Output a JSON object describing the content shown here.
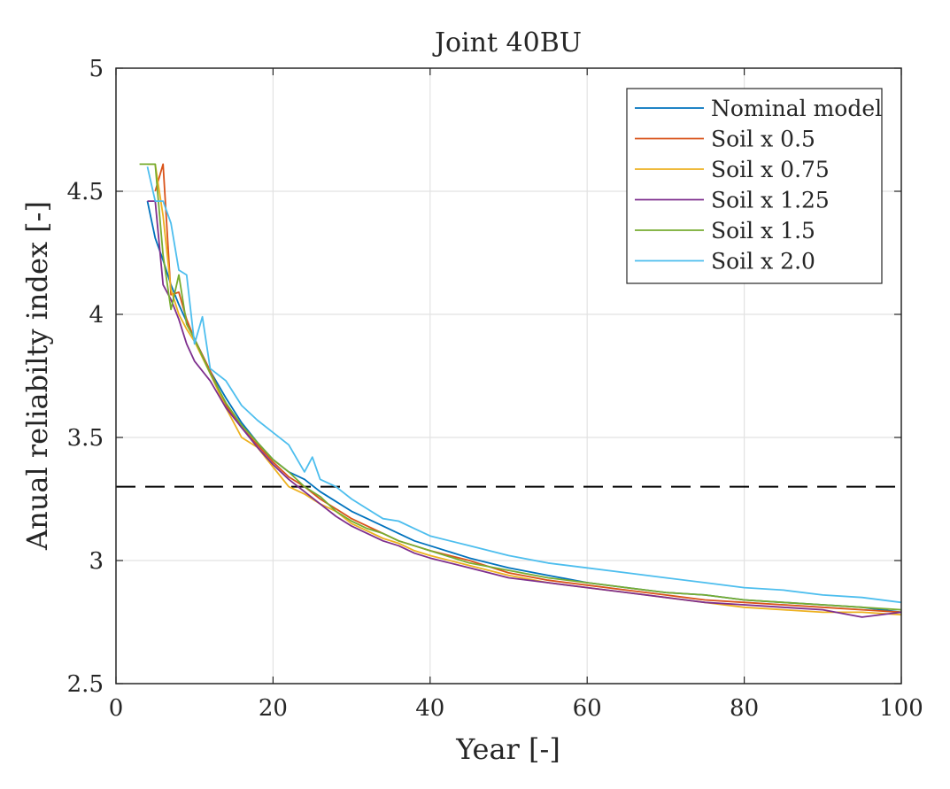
{
  "chart_data": {
    "type": "line",
    "title": "Joint 40BU",
    "xlabel": "Year [-]",
    "ylabel": "Anual reliabilty index [-]",
    "xlim": [
      0,
      100
    ],
    "ylim": [
      2.5,
      5
    ],
    "xticks": [
      0,
      20,
      40,
      60,
      80,
      100
    ],
    "yticks": [
      2.5,
      3,
      3.5,
      4,
      4.5,
      5
    ],
    "xtick_labels": [
      "0",
      "20",
      "40",
      "60",
      "80",
      "100"
    ],
    "ytick_labels": [
      "2.5",
      "3",
      "3.5",
      "4",
      "4.5",
      "5"
    ],
    "grid": true,
    "legend_position": "top-right",
    "reference_line": {
      "y": 3.3,
      "style": "dashed",
      "color": "#000000"
    },
    "series": [
      {
        "name": "Nominal model",
        "color": "#0072BD",
        "x": [
          4,
          5,
          6,
          7,
          8,
          9,
          10,
          12,
          14,
          16,
          18,
          20,
          22,
          24,
          26,
          28,
          30,
          32,
          34,
          36,
          38,
          40,
          45,
          50,
          55,
          60,
          65,
          70,
          75,
          80,
          85,
          90,
          95,
          100
        ],
        "y": [
          4.46,
          4.31,
          4.22,
          4.12,
          4.04,
          3.97,
          3.9,
          3.77,
          3.66,
          3.56,
          3.48,
          3.41,
          3.36,
          3.33,
          3.28,
          3.24,
          3.2,
          3.17,
          3.14,
          3.11,
          3.08,
          3.06,
          3.01,
          2.97,
          2.94,
          2.91,
          2.89,
          2.87,
          2.86,
          2.84,
          2.83,
          2.82,
          2.81,
          2.79
        ]
      },
      {
        "name": "Soil x 0.5",
        "color": "#D95319",
        "x": [
          5,
          6,
          7,
          8,
          9,
          10,
          12,
          14,
          16,
          18,
          20,
          22,
          24,
          26,
          28,
          30,
          32,
          34,
          36,
          38,
          40,
          45,
          50,
          55,
          60,
          65,
          70,
          75,
          80,
          85,
          90,
          95,
          100
        ],
        "y": [
          4.5,
          4.61,
          4.08,
          4.09,
          3.98,
          3.9,
          3.77,
          3.63,
          3.54,
          3.47,
          3.4,
          3.34,
          3.3,
          3.25,
          3.21,
          3.17,
          3.14,
          3.11,
          3.08,
          3.06,
          3.04,
          3.0,
          2.95,
          2.92,
          2.9,
          2.88,
          2.86,
          2.84,
          2.83,
          2.82,
          2.81,
          2.8,
          2.79
        ]
      },
      {
        "name": "Soil x 0.75",
        "color": "#EDB120",
        "x": [
          4,
          5,
          6,
          7,
          8,
          9,
          10,
          12,
          14,
          16,
          18,
          20,
          22,
          24,
          26,
          28,
          30,
          32,
          34,
          36,
          38,
          40,
          45,
          50,
          55,
          60,
          65,
          70,
          75,
          80,
          85,
          90,
          95,
          100
        ],
        "y": [
          4.61,
          4.61,
          4.4,
          4.1,
          4.0,
          3.94,
          3.89,
          3.76,
          3.62,
          3.5,
          3.46,
          3.38,
          3.3,
          3.27,
          3.23,
          3.2,
          3.15,
          3.12,
          3.09,
          3.07,
          3.04,
          3.02,
          2.98,
          2.94,
          2.91,
          2.89,
          2.87,
          2.85,
          2.83,
          2.81,
          2.8,
          2.79,
          2.79,
          2.78
        ]
      },
      {
        "name": "Soil x 1.25",
        "color": "#7E2F8E",
        "x": [
          4,
          5,
          6,
          7,
          8,
          9,
          10,
          12,
          14,
          16,
          18,
          20,
          22,
          24,
          26,
          28,
          30,
          32,
          34,
          36,
          38,
          40,
          45,
          50,
          55,
          60,
          65,
          70,
          75,
          80,
          85,
          90,
          95,
          100
        ],
        "y": [
          4.46,
          4.46,
          4.12,
          4.06,
          3.98,
          3.88,
          3.81,
          3.73,
          3.62,
          3.54,
          3.46,
          3.39,
          3.33,
          3.28,
          3.23,
          3.18,
          3.14,
          3.11,
          3.08,
          3.06,
          3.03,
          3.01,
          2.97,
          2.93,
          2.91,
          2.89,
          2.87,
          2.85,
          2.83,
          2.82,
          2.81,
          2.8,
          2.77,
          2.79
        ]
      },
      {
        "name": "Soil x 1.5",
        "color": "#77AC30",
        "x": [
          3,
          4,
          5,
          6,
          7,
          8,
          9,
          10,
          12,
          14,
          16,
          18,
          20,
          22,
          24,
          26,
          28,
          30,
          32,
          34,
          36,
          38,
          40,
          45,
          50,
          55,
          60,
          65,
          70,
          75,
          80,
          85,
          90,
          95,
          100
        ],
        "y": [
          4.61,
          4.61,
          4.61,
          4.24,
          4.02,
          4.16,
          3.96,
          3.9,
          3.76,
          3.64,
          3.55,
          3.48,
          3.41,
          3.36,
          3.3,
          3.26,
          3.2,
          3.16,
          3.13,
          3.11,
          3.08,
          3.06,
          3.04,
          2.99,
          2.96,
          2.93,
          2.91,
          2.89,
          2.87,
          2.86,
          2.84,
          2.83,
          2.82,
          2.81,
          2.8
        ]
      },
      {
        "name": "Soil x 2.0",
        "color": "#4DBEEE",
        "x": [
          4,
          5,
          6,
          7,
          8,
          9,
          10,
          11,
          12,
          14,
          16,
          18,
          20,
          22,
          24,
          25,
          26,
          28,
          30,
          32,
          34,
          36,
          38,
          40,
          45,
          50,
          55,
          60,
          65,
          70,
          75,
          80,
          85,
          90,
          95,
          100
        ],
        "y": [
          4.6,
          4.46,
          4.46,
          4.37,
          4.18,
          4.16,
          3.88,
          3.99,
          3.78,
          3.73,
          3.63,
          3.57,
          3.52,
          3.47,
          3.36,
          3.42,
          3.33,
          3.3,
          3.25,
          3.21,
          3.17,
          3.16,
          3.13,
          3.1,
          3.06,
          3.02,
          2.99,
          2.97,
          2.95,
          2.93,
          2.91,
          2.89,
          2.88,
          2.86,
          2.85,
          2.83
        ]
      }
    ]
  }
}
